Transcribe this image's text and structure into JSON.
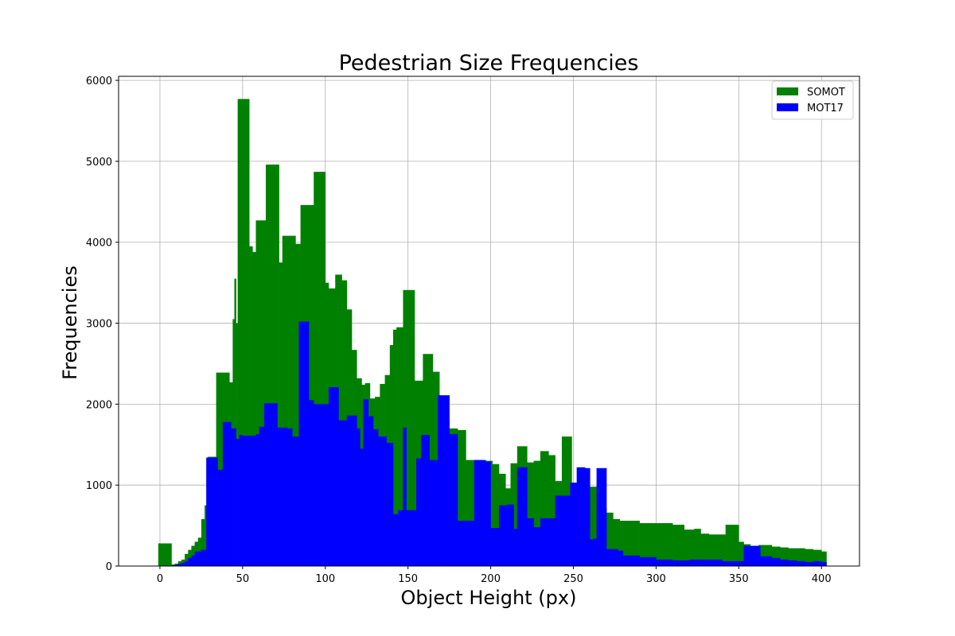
{
  "chart_data": {
    "type": "bar",
    "title": "Pedestrian Size Frequencies",
    "xlabel": "Object Height (px)",
    "ylabel": "Frequencies",
    "xlim": [
      -25,
      423
    ],
    "ylim": [
      0,
      6050
    ],
    "xticks": [
      0,
      50,
      100,
      150,
      200,
      250,
      300,
      350,
      400
    ],
    "yticks": [
      0,
      1000,
      2000,
      3000,
      4000,
      5000,
      6000
    ],
    "grid": true,
    "legend_position": "top-right",
    "series": [
      {
        "name": "SOMOT",
        "color": "#008000",
        "bins": [
          [
            -1,
            7,
            280
          ],
          [
            7,
            9,
            20
          ],
          [
            9,
            11,
            30
          ],
          [
            11,
            13,
            60
          ],
          [
            13,
            15,
            80
          ],
          [
            15,
            17,
            150
          ],
          [
            17,
            19,
            200
          ],
          [
            19,
            21,
            250
          ],
          [
            21,
            23,
            300
          ],
          [
            23,
            25,
            350
          ],
          [
            25,
            27,
            580
          ],
          [
            27,
            29,
            750
          ],
          [
            29,
            34,
            1350
          ],
          [
            34,
            42,
            2390
          ],
          [
            42,
            44,
            2270
          ],
          [
            44,
            45,
            3050
          ],
          [
            45,
            46,
            3550
          ],
          [
            46,
            47,
            3000
          ],
          [
            47,
            54,
            5770
          ],
          [
            54,
            56,
            3950
          ],
          [
            56,
            58,
            3880
          ],
          [
            58,
            64,
            4270
          ],
          [
            64,
            72,
            4960
          ],
          [
            72,
            74,
            3750
          ],
          [
            74,
            82,
            4080
          ],
          [
            82,
            85,
            3980
          ],
          [
            85,
            93,
            4460
          ],
          [
            93,
            100,
            4870
          ],
          [
            100,
            102,
            3500
          ],
          [
            102,
            106,
            3430
          ],
          [
            106,
            110,
            3600
          ],
          [
            110,
            113,
            3530
          ],
          [
            113,
            116,
            3170
          ],
          [
            116,
            119,
            2670
          ],
          [
            119,
            122,
            2320
          ],
          [
            122,
            124,
            2240
          ],
          [
            124,
            127,
            2260
          ],
          [
            127,
            130,
            2070
          ],
          [
            130,
            133,
            2090
          ],
          [
            133,
            136,
            2250
          ],
          [
            136,
            139,
            2360
          ],
          [
            139,
            141,
            2730
          ],
          [
            141,
            143,
            2920
          ],
          [
            143,
            147,
            2950
          ],
          [
            147,
            154,
            3410
          ],
          [
            154,
            159,
            2290
          ],
          [
            159,
            165,
            2620
          ],
          [
            165,
            169,
            2400
          ],
          [
            169,
            175,
            1790
          ],
          [
            175,
            177,
            1700
          ],
          [
            177,
            180,
            1700
          ],
          [
            180,
            185,
            1680
          ],
          [
            185,
            190,
            1310
          ],
          [
            190,
            195,
            1310
          ],
          [
            195,
            201,
            1300
          ],
          [
            201,
            205,
            1260
          ],
          [
            205,
            209,
            1140
          ],
          [
            209,
            212,
            960
          ],
          [
            212,
            216,
            1270
          ],
          [
            216,
            222,
            1480
          ],
          [
            222,
            226,
            1280
          ],
          [
            226,
            230,
            1300
          ],
          [
            230,
            235,
            1420
          ],
          [
            235,
            239,
            1370
          ],
          [
            239,
            243,
            1050
          ],
          [
            243,
            249,
            1600
          ],
          [
            249,
            253,
            1030
          ],
          [
            253,
            258,
            1020
          ],
          [
            258,
            262,
            980
          ],
          [
            262,
            266,
            980
          ],
          [
            266,
            270,
            720
          ],
          [
            270,
            274,
            660
          ],
          [
            274,
            278,
            580
          ],
          [
            278,
            290,
            560
          ],
          [
            290,
            300,
            530
          ],
          [
            300,
            310,
            530
          ],
          [
            310,
            317,
            510
          ],
          [
            317,
            323,
            450
          ],
          [
            323,
            327,
            460
          ],
          [
            327,
            332,
            400
          ],
          [
            332,
            336,
            390
          ],
          [
            336,
            342,
            390
          ],
          [
            342,
            350,
            510
          ],
          [
            350,
            353,
            300
          ],
          [
            353,
            357,
            270
          ],
          [
            357,
            362,
            230
          ],
          [
            362,
            370,
            260
          ],
          [
            370,
            375,
            240
          ],
          [
            375,
            380,
            230
          ],
          [
            380,
            385,
            220
          ],
          [
            385,
            390,
            220
          ],
          [
            390,
            395,
            210
          ],
          [
            395,
            400,
            200
          ],
          [
            400,
            403,
            180
          ]
        ]
      },
      {
        "name": "MOT17",
        "color": "#0000ff",
        "bins": [
          [
            7,
            9,
            10
          ],
          [
            9,
            11,
            15
          ],
          [
            11,
            13,
            25
          ],
          [
            13,
            15,
            40
          ],
          [
            15,
            17,
            60
          ],
          [
            17,
            19,
            100
          ],
          [
            19,
            21,
            130
          ],
          [
            21,
            25,
            180
          ],
          [
            25,
            28,
            200
          ],
          [
            28,
            35,
            1340
          ],
          [
            35,
            38,
            1190
          ],
          [
            38,
            43,
            1780
          ],
          [
            43,
            46,
            1700
          ],
          [
            46,
            48,
            1570
          ],
          [
            48,
            50,
            1620
          ],
          [
            50,
            58,
            1610
          ],
          [
            58,
            60,
            1630
          ],
          [
            60,
            63,
            1720
          ],
          [
            63,
            71,
            2010
          ],
          [
            71,
            77,
            1710
          ],
          [
            77,
            80,
            1700
          ],
          [
            80,
            84,
            1600
          ],
          [
            84,
            90,
            3020
          ],
          [
            90,
            93,
            2050
          ],
          [
            93,
            97,
            2000
          ],
          [
            97,
            102,
            2000
          ],
          [
            102,
            108,
            2210
          ],
          [
            108,
            113,
            1800
          ],
          [
            113,
            119,
            1860
          ],
          [
            119,
            121,
            1700
          ],
          [
            121,
            123,
            1450
          ],
          [
            123,
            126,
            2060
          ],
          [
            126,
            129,
            1850
          ],
          [
            129,
            132,
            1690
          ],
          [
            132,
            137,
            1600
          ],
          [
            137,
            141,
            1520
          ],
          [
            141,
            144,
            640
          ],
          [
            144,
            147,
            690
          ],
          [
            147,
            149,
            1710
          ],
          [
            149,
            155,
            690
          ],
          [
            155,
            158,
            1330
          ],
          [
            158,
            163,
            1620
          ],
          [
            163,
            168,
            1310
          ],
          [
            168,
            175,
            2110
          ],
          [
            175,
            180,
            1630
          ],
          [
            180,
            185,
            560
          ],
          [
            185,
            190,
            560
          ],
          [
            190,
            197,
            1310
          ],
          [
            197,
            200,
            1290
          ],
          [
            200,
            205,
            470
          ],
          [
            205,
            210,
            750
          ],
          [
            210,
            214,
            760
          ],
          [
            214,
            216,
            460
          ],
          [
            216,
            222,
            1220
          ],
          [
            222,
            226,
            590
          ],
          [
            226,
            230,
            480
          ],
          [
            230,
            235,
            590
          ],
          [
            235,
            239,
            590
          ],
          [
            239,
            243,
            870
          ],
          [
            243,
            248,
            870
          ],
          [
            248,
            252,
            1030
          ],
          [
            252,
            257,
            1220
          ],
          [
            257,
            260,
            1210
          ],
          [
            260,
            262,
            330
          ],
          [
            262,
            264,
            340
          ],
          [
            264,
            270,
            1210
          ],
          [
            270,
            273,
            210
          ],
          [
            273,
            277,
            210
          ],
          [
            277,
            280,
            190
          ],
          [
            280,
            290,
            130
          ],
          [
            290,
            300,
            110
          ],
          [
            300,
            310,
            80
          ],
          [
            310,
            320,
            70
          ],
          [
            320,
            330,
            80
          ],
          [
            330,
            340,
            80
          ],
          [
            340,
            348,
            60
          ],
          [
            348,
            353,
            60
          ],
          [
            353,
            359,
            250
          ],
          [
            359,
            363,
            250
          ],
          [
            363,
            370,
            120
          ],
          [
            370,
            375,
            100
          ],
          [
            375,
            380,
            80
          ],
          [
            380,
            385,
            70
          ],
          [
            385,
            390,
            60
          ],
          [
            390,
            395,
            50
          ],
          [
            395,
            400,
            60
          ],
          [
            400,
            403,
            50
          ]
        ]
      }
    ]
  }
}
